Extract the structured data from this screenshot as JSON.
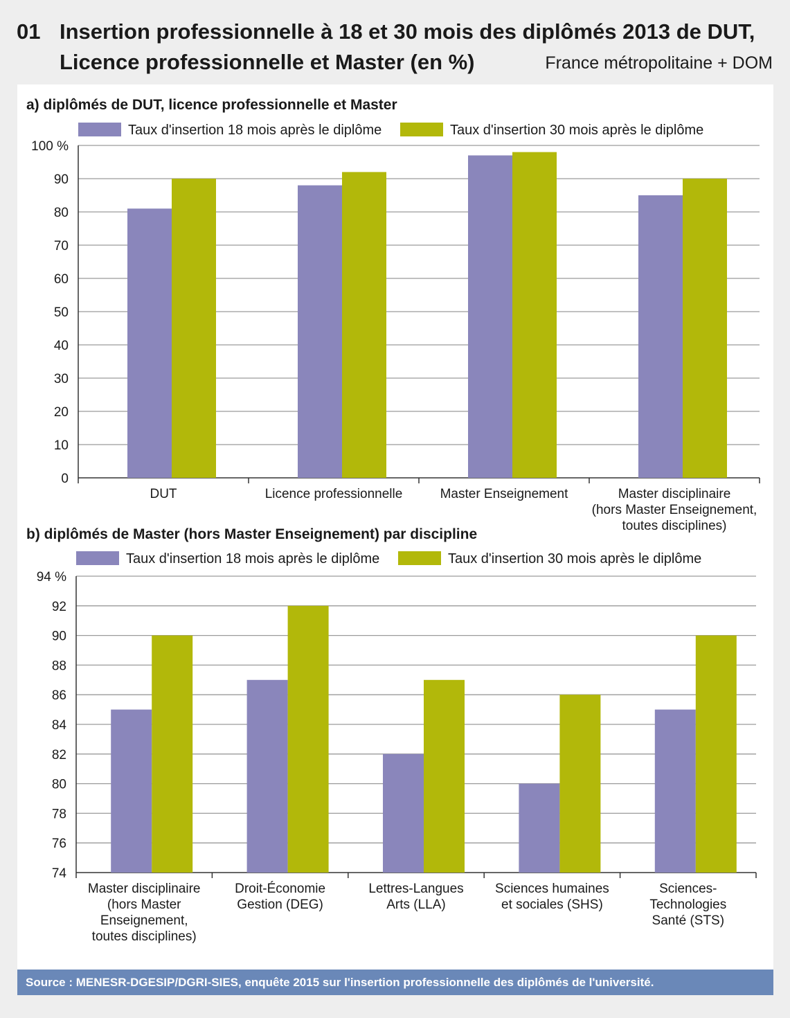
{
  "header": {
    "number": "01",
    "title_line1": "Insertion professionnelle à 18 et 30 mois des diplômés 2013 de DUT,",
    "title_line2": "Licence professionnelle et Master (en %)",
    "scope": "France métropolitaine + DOM"
  },
  "colors": {
    "series18": "#8a86bb",
    "series30": "#b2b80a",
    "source_bar": "#6a88b8"
  },
  "chart_data": [
    {
      "type": "bar",
      "title": "a) diplômés de DUT, licence professionnelle et Master",
      "categories": [
        [
          "DUT"
        ],
        [
          "Licence professionnelle"
        ],
        [
          "Master Enseignement"
        ],
        [
          "Master disciplinaire",
          "(hors Master Enseignement,",
          "toutes disciplines)"
        ]
      ],
      "series": [
        {
          "name": "Taux d'insertion 18 mois après le diplôme",
          "values": [
            81,
            88,
            97,
            85
          ]
        },
        {
          "name": "Taux d'insertion 30 mois après le diplôme",
          "values": [
            90,
            92,
            98,
            90
          ]
        }
      ],
      "ylim": [
        0,
        100
      ],
      "yticks": [
        "0",
        "10",
        "20",
        "30",
        "40",
        "50",
        "60",
        "70",
        "80",
        "90",
        "100 %"
      ],
      "grid": true,
      "legend": "top"
    },
    {
      "type": "bar",
      "title": "b) diplômés de Master (hors Master Enseignement) par discipline",
      "categories": [
        [
          "Master disciplinaire",
          "(hors Master",
          "Enseignement,",
          "toutes disciplines)"
        ],
        [
          "Droit-Économie",
          "Gestion (DEG)"
        ],
        [
          "Lettres-Langues",
          "Arts (LLA)"
        ],
        [
          "Sciences humaines",
          "et sociales (SHS)"
        ],
        [
          "Sciences-",
          "Technologies",
          "Santé (STS)"
        ]
      ],
      "series": [
        {
          "name": "Taux d'insertion 18 mois après le diplôme",
          "values": [
            85,
            87,
            82,
            80,
            85
          ]
        },
        {
          "name": "Taux d'insertion 30 mois après le diplôme",
          "values": [
            90,
            92,
            87,
            86,
            90
          ]
        }
      ],
      "ylim": [
        74,
        94
      ],
      "yticks": [
        "74",
        "76",
        "78",
        "80",
        "82",
        "84",
        "86",
        "88",
        "90",
        "92",
        "94 %"
      ],
      "grid": true,
      "legend": "top"
    }
  ],
  "source": "Source  :  MENESR-DGESIP/DGRI-SIES, enquête 2015 sur l'insertion professionnelle des diplômés de l'université."
}
